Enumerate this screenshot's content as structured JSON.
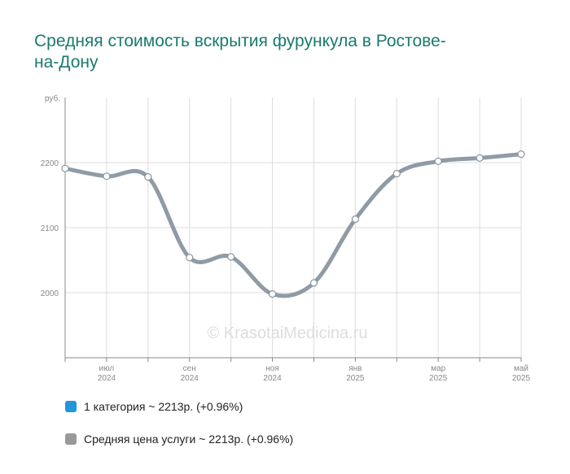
{
  "title": "Средняя стоимость вскрытия фурункула в Ростове-на-Дону",
  "watermark": "© KrasotaiMedicina.ru",
  "colors": {
    "title": "#1a7a6e",
    "series_1": "#2196d8",
    "series_2": "#999999",
    "line": "#8f9ba6"
  },
  "legend": [
    {
      "label": "1 категория ~ 2213р. (+0.96%)",
      "color": "#2196d8"
    },
    {
      "label": "Средняя цена услуги ~ 2213р. (+0.96%)",
      "color": "#999999"
    }
  ],
  "chart_data": {
    "type": "line",
    "ylabel": "руб.",
    "ylim": [
      1900,
      2300
    ],
    "y_ticks": [
      2000,
      2100,
      2200
    ],
    "x_tick_labels": [
      {
        "month": "июл",
        "year": "2024"
      },
      {
        "month": "сен",
        "year": "2024"
      },
      {
        "month": "ноя",
        "year": "2024"
      },
      {
        "month": "янв",
        "year": "2025"
      },
      {
        "month": "мар",
        "year": "2025"
      },
      {
        "month": "май",
        "year": "2025"
      }
    ],
    "series": [
      {
        "name": "1 категория",
        "values": [
          2191,
          2179,
          2178,
          2054,
          2055,
          1998,
          2015,
          2113,
          2183,
          2202,
          2207,
          2213
        ]
      },
      {
        "name": "Средняя цена услуги",
        "values": [
          2191,
          2179,
          2178,
          2054,
          2055,
          1998,
          2015,
          2113,
          2183,
          2202,
          2207,
          2213
        ]
      }
    ],
    "grid": true
  }
}
